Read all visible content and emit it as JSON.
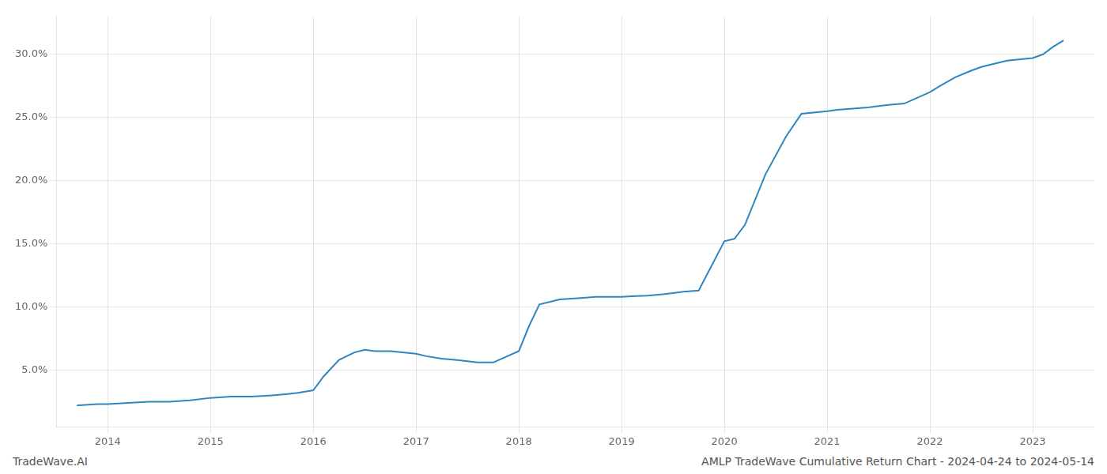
{
  "chart_data": {
    "type": "line",
    "annotations": [
      "TradeWave.AI",
      "AMLP TradeWave Cumulative Return Chart - 2024-04-24 to 2024-05-14"
    ],
    "color": "#2e86c1",
    "x": [
      2013.7,
      2013.9,
      2014.0,
      2014.2,
      2014.4,
      2014.6,
      2014.8,
      2015.0,
      2015.2,
      2015.4,
      2015.6,
      2015.75,
      2015.85,
      2016.0,
      2016.1,
      2016.25,
      2016.4,
      2016.5,
      2016.6,
      2016.75,
      2017.0,
      2017.1,
      2017.25,
      2017.4,
      2017.5,
      2017.6,
      2017.75,
      2018.0,
      2018.1,
      2018.2,
      2018.4,
      2018.6,
      2018.75,
      2019.0,
      2019.1,
      2019.25,
      2019.4,
      2019.5,
      2019.6,
      2019.75,
      2020.0,
      2020.05,
      2020.1,
      2020.2,
      2020.4,
      2020.6,
      2020.75,
      2021.0,
      2021.1,
      2021.25,
      2021.4,
      2021.5,
      2021.6,
      2021.75,
      2022.0,
      2022.1,
      2022.25,
      2022.4,
      2022.5,
      2022.6,
      2022.75,
      2023.0,
      2023.1,
      2023.2,
      2023.3
    ],
    "values": [
      2.2,
      2.3,
      2.3,
      2.4,
      2.5,
      2.5,
      2.6,
      2.8,
      2.9,
      2.9,
      3.0,
      3.1,
      3.2,
      3.4,
      4.5,
      5.8,
      6.4,
      6.6,
      6.5,
      6.5,
      6.3,
      6.1,
      5.9,
      5.8,
      5.7,
      5.6,
      5.6,
      6.5,
      8.5,
      10.2,
      10.6,
      10.7,
      10.8,
      10.8,
      10.85,
      10.9,
      11.0,
      11.1,
      11.2,
      11.3,
      15.2,
      15.3,
      15.4,
      16.5,
      20.5,
      23.5,
      25.3,
      25.5,
      25.6,
      25.7,
      25.8,
      25.9,
      26.0,
      26.1,
      27.0,
      27.5,
      28.2,
      28.7,
      29.0,
      29.2,
      29.5,
      29.7,
      30.0,
      30.6,
      31.1
    ],
    "xlim": [
      2013.5,
      2023.6
    ],
    "xticks": [
      2014,
      2015,
      2016,
      2017,
      2018,
      2019,
      2020,
      2021,
      2022,
      2023
    ],
    "ylim": [
      0.5,
      33
    ],
    "yticks": [
      {
        "value": 5.0,
        "label": "5.0%"
      },
      {
        "value": 10.0,
        "label": "10.0%"
      },
      {
        "value": 15.0,
        "label": "15.0%"
      },
      {
        "value": 20.0,
        "label": "20.0%"
      },
      {
        "value": 25.0,
        "label": "25.0%"
      },
      {
        "value": 30.0,
        "label": "30.0%"
      }
    ],
    "grid": true
  }
}
